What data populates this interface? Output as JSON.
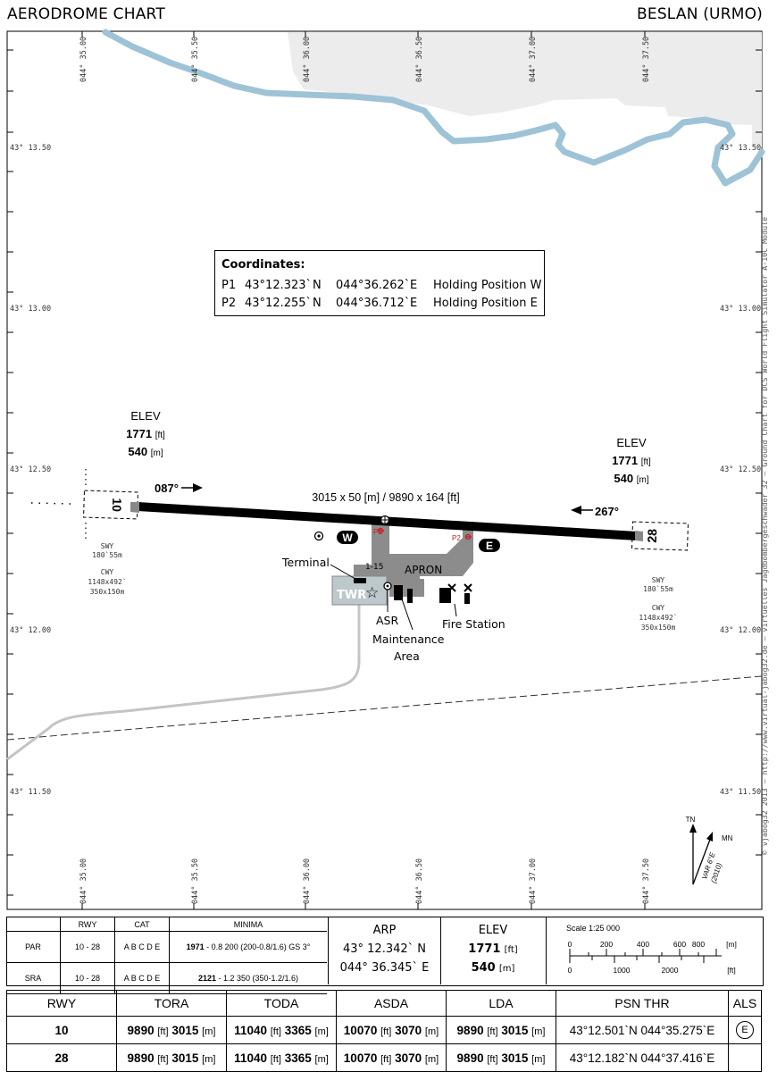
{
  "header": {
    "title": "AERODROME CHART",
    "airport": "BESLAN (URMO)"
  },
  "sidebar": {
    "text": "© vjabog32 2013 – http://www.virtual-jabog32.de – virtuelles Jagdbombergeschwader 32 – Ground Chart for DCS World Flight Simulator A-10C Module"
  },
  "grid": {
    "lon_top": [
      "044° 35.00",
      "044° 35.50",
      "044° 36.00",
      "044° 36.50",
      "044° 37.00",
      "044° 37.50"
    ],
    "lon_bottom": [
      "044° 35.00",
      "044° 35.50",
      "044° 36.00",
      "044° 36.50",
      "044° 37.00",
      "044° 37.50"
    ],
    "lat": [
      "43° 13.50",
      "43° 13.00",
      "43° 12.50",
      "43° 12.00",
      "43° 11.50"
    ]
  },
  "coordinates": {
    "title": "Coordinates:",
    "rows": [
      {
        "id": "P1",
        "lat": "43°12.323`",
        "ns": "N",
        "lon": "044°36.262`",
        "ew": "E",
        "desc": "Holding Position W"
      },
      {
        "id": "P2",
        "lat": "43°12.255`",
        "ns": "N",
        "lon": "044°36.712`",
        "ew": "E",
        "desc": "Holding Position E"
      }
    ]
  },
  "runway": {
    "dimensions": "3015 x 50 [m] / 9890 x 164 [ft]",
    "rwy_west": "10",
    "rwy_east": "28",
    "hdg_west": "087°",
    "hdg_east": "267°"
  },
  "elev_west": {
    "label": "ELEV",
    "ft": "1771",
    "ft_unit": "[ft]",
    "m": "540",
    "m_unit": "[m]"
  },
  "elev_east": {
    "label": "ELEV",
    "ft": "1771",
    "ft_unit": "[ft]",
    "m": "540",
    "m_unit": "[m]"
  },
  "swy_west": [
    "SWY",
    "180`55m",
    "CWY",
    "1148x492`",
    "350x150m"
  ],
  "swy_east": [
    "SWY",
    "180`55m",
    "CWY",
    "1148x492`",
    "350x150m"
  ],
  "labels": {
    "terminal": "Terminal",
    "apron": "APRON",
    "stand": "1-15",
    "twr": "TWR",
    "asr": "ASR",
    "maint1": "Maintenance",
    "maint2": "Area",
    "fire": "Fire Station",
    "twy_w": "W",
    "twy_e": "E",
    "p1": "P1",
    "p2": "P2"
  },
  "north": {
    "tn": "TN",
    "mn": "MN",
    "var1": "VAR 6°E",
    "var2": "(2010)"
  },
  "minima": {
    "headers": [
      "RWY",
      "CAT",
      "MINIMA"
    ],
    "rows": [
      {
        "type": "PAR",
        "rwy": "10 - 28",
        "cat": "A B C D E",
        "min_bold": "1971",
        "min_rest": " - 0.8 200 (200-0.8/1.6) GS 3°"
      },
      {
        "type": "SRA",
        "rwy": "10 - 28",
        "cat": "A B C D E",
        "min_bold": "2121",
        "min_rest": " - 1.2 350 (350-1.2/1.6)"
      }
    ]
  },
  "arp": {
    "label": "ARP",
    "lat": "43° 12.342` N",
    "lon": "044° 36.345` E"
  },
  "elev_info": {
    "label": "ELEV",
    "ft": "1771",
    "ft_unit": "[ft]",
    "m": "540",
    "m_unit": "[m]"
  },
  "scale": {
    "label": "Scale 1:25 000",
    "m_ticks": [
      "0",
      "200",
      "400",
      "600",
      "800"
    ],
    "m_unit": "[m]",
    "ft_ticks": [
      "0",
      "1000",
      "2000"
    ],
    "ft_unit": "[ft]"
  },
  "performance": {
    "headers": [
      "RWY",
      "TORA",
      "TODA",
      "ASDA",
      "LDA",
      "PSN THR",
      "ALS"
    ],
    "rows": [
      {
        "rwy": "10",
        "tora_ft": "9890",
        "tora_m": "3015",
        "toda_ft": "11040",
        "toda_m": "3365",
        "asda_ft": "10070",
        "asda_m": "3070",
        "lda_ft": "9890",
        "lda_m": "3015",
        "psn": "43°12.501`N 044°35.275`E",
        "als": "E"
      },
      {
        "rwy": "28",
        "tora_ft": "9890",
        "tora_m": "3015",
        "toda_ft": "11040",
        "toda_m": "3365",
        "asda_ft": "10070",
        "asda_m": "3070",
        "lda_ft": "9890",
        "lda_m": "3015",
        "psn": "43°12.182`N 044°37.416`E",
        "als": ""
      }
    ],
    "ft_unit": "[ft]",
    "m_unit": "[m]"
  },
  "colors": {
    "river": "#9ec3d6",
    "urban": "#ececec",
    "apron": "#8c8c8c",
    "runway": "#000000",
    "twr_area": "#bcc8cc",
    "road": "#c4c4c4",
    "holding": "#cc2222"
  }
}
